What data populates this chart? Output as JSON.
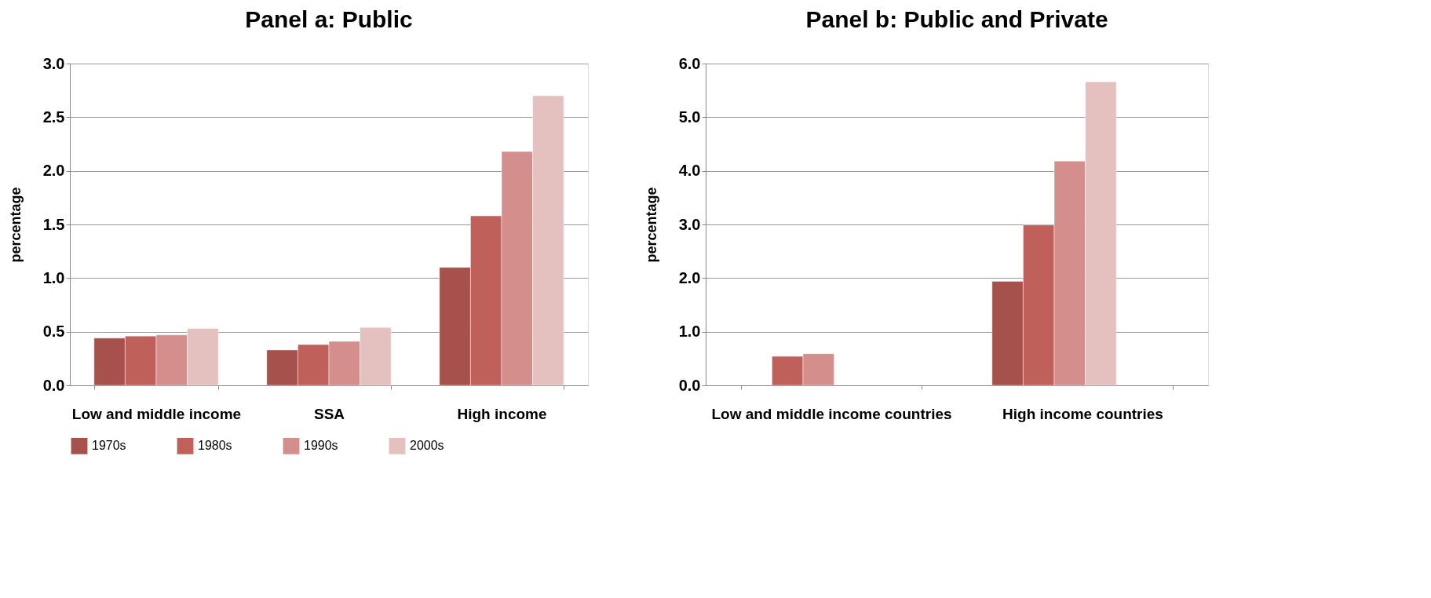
{
  "chart_data": [
    {
      "type": "bar",
      "title": "Panel a: Public",
      "ylabel": "percentage",
      "categories": [
        "Low and middle income",
        "SSA",
        "High income"
      ],
      "series": [
        {
          "name": "1970s",
          "color": "#a6514b",
          "values": [
            0.44,
            0.33,
            1.1
          ]
        },
        {
          "name": "1980s",
          "color": "#c0605a",
          "values": [
            0.46,
            0.38,
            1.58
          ]
        },
        {
          "name": "1990s",
          "color": "#d48e8c",
          "values": [
            0.47,
            0.41,
            2.18
          ]
        },
        {
          "name": "2000s",
          "color": "#e4c1bf",
          "values": [
            0.53,
            0.54,
            2.7
          ]
        }
      ],
      "ylim": [
        0,
        3.0
      ],
      "yticks": [
        {
          "value": 0,
          "label": "0.0"
        },
        {
          "value": 0.5,
          "label": "0.5"
        },
        {
          "value": 1,
          "label": "1.0"
        },
        {
          "value": 1.5,
          "label": "1.5"
        },
        {
          "value": 2,
          "label": "2.0"
        },
        {
          "value": 2.5,
          "label": "2.5"
        },
        {
          "value": 3,
          "label": "3.0"
        }
      ],
      "grid": "y",
      "legend": "bottom"
    },
    {
      "type": "bar",
      "title": "Panel b: Public and Private",
      "ylabel": "percentage",
      "categories": [
        "Low and middle income countries",
        "High income countries"
      ],
      "series": [
        {
          "name": "1970s",
          "color": "#a6514b",
          "values": [
            null,
            1.94
          ]
        },
        {
          "name": "1980s",
          "color": "#c0605a",
          "values": [
            0.54,
            2.99
          ]
        },
        {
          "name": "1990s",
          "color": "#d48e8c",
          "values": [
            0.59,
            4.18
          ]
        },
        {
          "name": "2000s",
          "color": "#e4c1bf",
          "values": [
            null,
            5.66
          ]
        }
      ],
      "ylim": [
        0,
        6.0
      ],
      "yticks": [
        {
          "value": 0,
          "label": "0.0"
        },
        {
          "value": 1,
          "label": "1.0"
        },
        {
          "value": 2,
          "label": "2.0"
        },
        {
          "value": 3,
          "label": "3.0"
        },
        {
          "value": 4,
          "label": "4.0"
        },
        {
          "value": 5,
          "label": "5.0"
        },
        {
          "value": 6,
          "label": "6.0"
        }
      ],
      "grid": "y",
      "legend": "bottom"
    }
  ]
}
